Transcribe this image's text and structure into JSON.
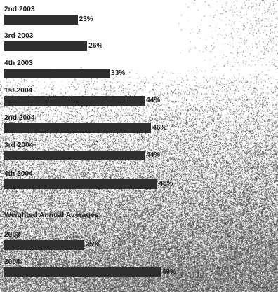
{
  "chart_data": [
    {
      "type": "bar",
      "orientation": "horizontal",
      "categories": [
        "2nd 2003",
        "3rd 2003",
        "4th 2003",
        "1st 2004",
        "2nd 2004",
        "3rd 2004",
        "4th 2004"
      ],
      "values": [
        23,
        26,
        33,
        44,
        46,
        44,
        48
      ],
      "value_labels": [
        "23%",
        "26%",
        "33%",
        "44%",
        "46%",
        "44%",
        "48%"
      ],
      "unit": "%",
      "xlim": [
        0,
        100
      ],
      "grid": false,
      "legend": "none"
    },
    {
      "type": "bar",
      "orientation": "horizontal",
      "title": "Weighted Annual Averages",
      "categories": [
        "2003",
        "2004"
      ],
      "values": [
        25,
        49
      ],
      "value_labels": [
        "25%",
        "49%"
      ],
      "unit": "%",
      "xlim": [
        0,
        100
      ],
      "grid": false,
      "legend": "none"
    }
  ],
  "colors": {
    "bar": "#2f2f2f",
    "text": "#1a1a1a",
    "background": "#ffffff"
  }
}
